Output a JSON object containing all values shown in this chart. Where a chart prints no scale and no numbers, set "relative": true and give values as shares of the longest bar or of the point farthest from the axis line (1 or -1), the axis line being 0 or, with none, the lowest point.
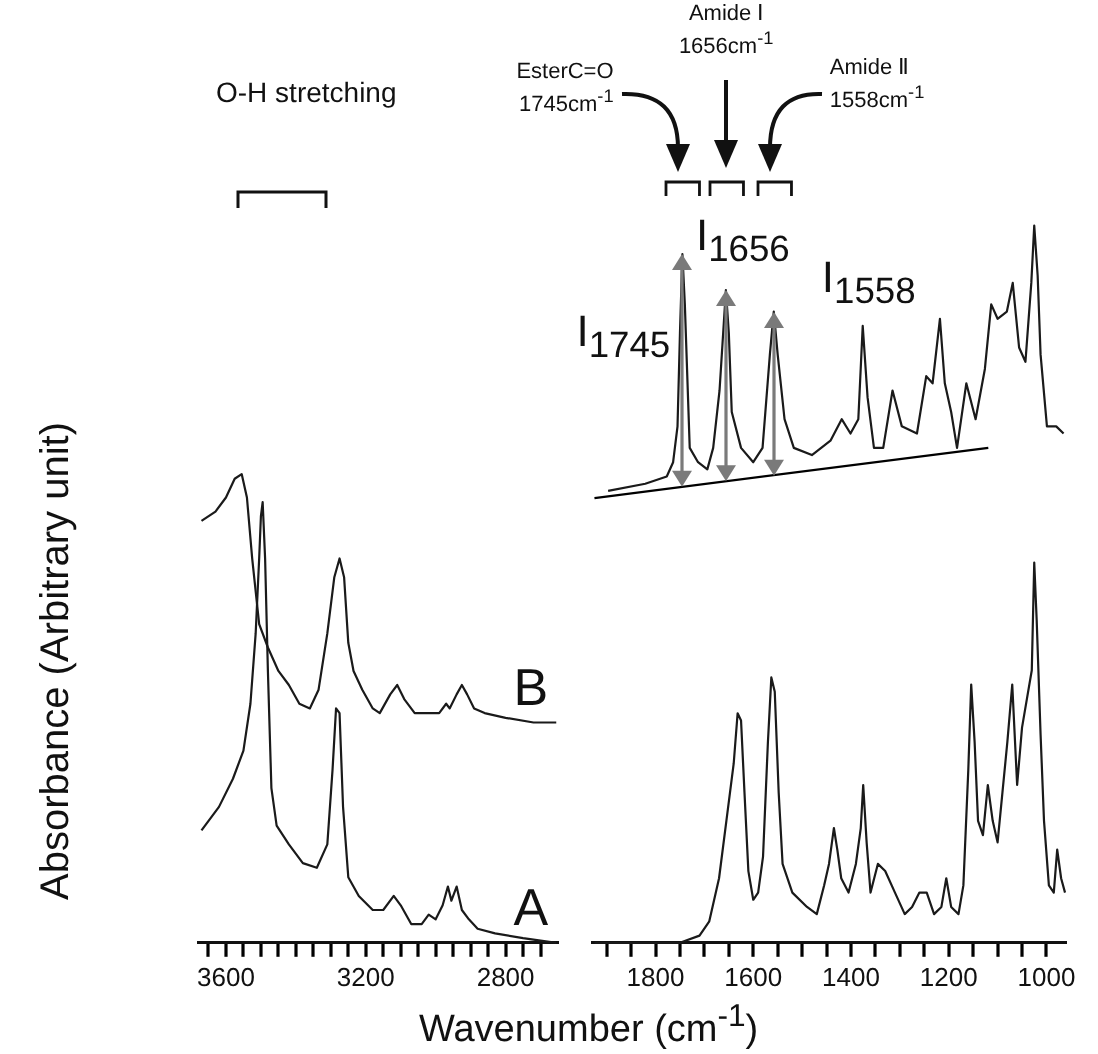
{
  "chart_data": [
    {
      "type": "line",
      "relative": true,
      "xlabel": "Wavenumber (cm$^{-1}$)",
      "ylabel": "Absorbance (Arbitrary unit)",
      "xlim": [
        3680,
        2650
      ],
      "xticks": [
        {
          "value": 3650,
          "label": null
        },
        3600,
        {
          "value": 3550,
          "label": null
        },
        {
          "value": 3500,
          "label": null
        },
        {
          "value": 3450,
          "label": null
        },
        {
          "value": 3400,
          "label": null
        },
        {
          "value": 3350,
          "label": null
        },
        {
          "value": 3300,
          "label": null
        },
        {
          "value": 3250,
          "label": null
        },
        3200,
        {
          "value": 3150,
          "label": null
        },
        {
          "value": 3100,
          "label": null
        },
        {
          "value": 3050,
          "label": null
        },
        {
          "value": 3000,
          "label": null
        },
        {
          "value": 2950,
          "label": null
        },
        {
          "value": 2900,
          "label": null
        },
        {
          "value": 2850,
          "label": null
        },
        2800,
        {
          "value": 2750,
          "label": null
        },
        {
          "value": 2700,
          "label": null
        }
      ],
      "marker": "none",
      "legend": false,
      "annotations": [
        "O-H stretching"
      ],
      "series": [
        {
          "name": "B",
          "color": "#1a1a1a",
          "x": [
            3670,
            3630,
            3600,
            3575,
            3555,
            3540,
            3525,
            3505,
            3480,
            3450,
            3420,
            3390,
            3360,
            3335,
            3310,
            3290,
            3275,
            3262,
            3250,
            3235,
            3210,
            3180,
            3160,
            3130,
            3110,
            3090,
            3060,
            3020,
            2990,
            2970,
            2960,
            2940,
            2925,
            2910,
            2890,
            2860,
            2800,
            2720,
            2655
          ],
          "values": [
            0.9,
            0.92,
            0.95,
            0.99,
            1.0,
            0.95,
            0.82,
            0.68,
            0.63,
            0.58,
            0.55,
            0.51,
            0.5,
            0.54,
            0.66,
            0.78,
            0.82,
            0.78,
            0.64,
            0.58,
            0.54,
            0.5,
            0.49,
            0.53,
            0.55,
            0.52,
            0.49,
            0.49,
            0.49,
            0.51,
            0.5,
            0.53,
            0.55,
            0.53,
            0.5,
            0.49,
            0.48,
            0.47,
            0.47
          ]
        },
        {
          "name": "A",
          "color": "#1a1a1a",
          "x": [
            3670,
            3620,
            3580,
            3550,
            3530,
            3515,
            3505,
            3500,
            3495,
            3488,
            3480,
            3470,
            3455,
            3420,
            3380,
            3340,
            3310,
            3295,
            3285,
            3275,
            3265,
            3250,
            3220,
            3180,
            3150,
            3120,
            3100,
            3070,
            3040,
            3020,
            3000,
            2980,
            2965,
            2955,
            2940,
            2925,
            2905,
            2880,
            2830,
            2750,
            2655
          ],
          "values": [
            0.24,
            0.29,
            0.35,
            0.41,
            0.51,
            0.66,
            0.82,
            0.91,
            0.94,
            0.82,
            0.58,
            0.33,
            0.25,
            0.21,
            0.17,
            0.16,
            0.21,
            0.37,
            0.5,
            0.49,
            0.29,
            0.14,
            0.1,
            0.07,
            0.07,
            0.1,
            0.08,
            0.04,
            0.04,
            0.06,
            0.05,
            0.08,
            0.12,
            0.09,
            0.12,
            0.07,
            0.05,
            0.03,
            0.02,
            0.01,
            0.0
          ]
        }
      ]
    },
    {
      "type": "line",
      "relative": true,
      "xlim": [
        1930,
        960
      ],
      "xticks": [
        {
          "value": 1900,
          "label": null
        },
        {
          "value": 1850,
          "label": null
        },
        1800,
        {
          "value": 1750,
          "label": null
        },
        {
          "value": 1700,
          "label": null
        },
        {
          "value": 1650,
          "label": null
        },
        1600,
        {
          "value": 1550,
          "label": null
        },
        {
          "value": 1500,
          "label": null
        },
        {
          "value": 1450,
          "label": null
        },
        1400,
        {
          "value": 1350,
          "label": null
        },
        {
          "value": 1300,
          "label": null
        },
        {
          "value": 1250,
          "label": null
        },
        1200,
        {
          "value": 1150,
          "label": null
        },
        {
          "value": 1100,
          "label": null
        },
        {
          "value": 1050,
          "label": null
        },
        1000
      ],
      "marker": "none",
      "legend": false,
      "annotations": [
        "EsterC=O\n1745cm$^{-1}$",
        "Amide Ⅰ\n1656cm$^{-1}$",
        "Amide Ⅱ\n1558cm$^{-1}$",
        {
          "text": "I$_{1745}$",
          "x": 1745,
          "y": 0.96
        },
        {
          "text": "I$_{1656}$",
          "x": 1656,
          "y": 0.91
        },
        {
          "text": "I$_{1558}$",
          "x": 1558,
          "y": 0.88
        }
      ],
      "series": [
        {
          "color": "#1a1a1a",
          "x": [
            1897,
            1821,
            1777,
            1764,
            1755,
            1750,
            1745,
            1740,
            1730,
            1713,
            1694,
            1682,
            1669,
            1656,
            1650,
            1644,
            1625,
            1600,
            1581,
            1566,
            1558,
            1550,
            1536,
            1517,
            1480,
            1442,
            1419,
            1401,
            1385,
            1376,
            1366,
            1353,
            1334,
            1315,
            1296,
            1265,
            1246,
            1233,
            1218,
            1208,
            1195,
            1183,
            1164,
            1145,
            1126,
            1113,
            1100,
            1081,
            1069,
            1056,
            1043,
            1031,
            1025,
            1018,
            1012,
            999,
            980,
            965
          ],
          "values": [
            0.63,
            0.64,
            0.65,
            0.67,
            0.72,
            0.85,
            0.96,
            0.89,
            0.69,
            0.67,
            0.66,
            0.69,
            0.77,
            0.91,
            0.85,
            0.74,
            0.69,
            0.67,
            0.69,
            0.82,
            0.88,
            0.82,
            0.73,
            0.69,
            0.68,
            0.7,
            0.73,
            0.71,
            0.73,
            0.86,
            0.76,
            0.69,
            0.69,
            0.77,
            0.72,
            0.71,
            0.79,
            0.78,
            0.87,
            0.78,
            0.74,
            0.69,
            0.78,
            0.73,
            0.8,
            0.89,
            0.87,
            0.88,
            0.92,
            0.83,
            0.81,
            0.92,
            1.0,
            0.93,
            0.82,
            0.72,
            0.72,
            0.71
          ]
        },
        {
          "color": "#1a1a1a",
          "x": [
            1925,
            1850,
            1750,
            1710,
            1690,
            1670,
            1655,
            1640,
            1632,
            1625,
            1618,
            1610,
            1600,
            1590,
            1580,
            1570,
            1563,
            1556,
            1548,
            1540,
            1520,
            1490,
            1470,
            1455,
            1445,
            1435,
            1428,
            1420,
            1405,
            1390,
            1380,
            1375,
            1368,
            1360,
            1345,
            1330,
            1310,
            1290,
            1275,
            1260,
            1245,
            1230,
            1215,
            1205,
            1195,
            1180,
            1170,
            1160,
            1154,
            1147,
            1140,
            1130,
            1120,
            1110,
            1100,
            1090,
            1080,
            1070,
            1060,
            1050,
            1040,
            1030,
            1025,
            1020,
            1012,
            1005,
            995,
            985,
            978,
            970,
            962
          ],
          "values": [
            0.0,
            0.0,
            0.0,
            0.01,
            0.03,
            0.09,
            0.17,
            0.25,
            0.32,
            0.31,
            0.21,
            0.1,
            0.06,
            0.07,
            0.12,
            0.28,
            0.37,
            0.35,
            0.21,
            0.11,
            0.07,
            0.05,
            0.04,
            0.08,
            0.11,
            0.16,
            0.13,
            0.09,
            0.07,
            0.11,
            0.16,
            0.22,
            0.14,
            0.07,
            0.11,
            0.1,
            0.07,
            0.04,
            0.05,
            0.07,
            0.07,
            0.04,
            0.05,
            0.09,
            0.05,
            0.04,
            0.08,
            0.24,
            0.36,
            0.28,
            0.17,
            0.15,
            0.22,
            0.17,
            0.14,
            0.21,
            0.28,
            0.36,
            0.22,
            0.3,
            0.34,
            0.38,
            0.53,
            0.45,
            0.29,
            0.17,
            0.08,
            0.07,
            0.13,
            0.09,
            0.07
          ]
        },
        {
          "type": "line",
          "color": "#000000",
          "x": [
            1925,
            1119
          ],
          "values": [
            0.62,
            0.69
          ]
        }
      ]
    }
  ]
}
